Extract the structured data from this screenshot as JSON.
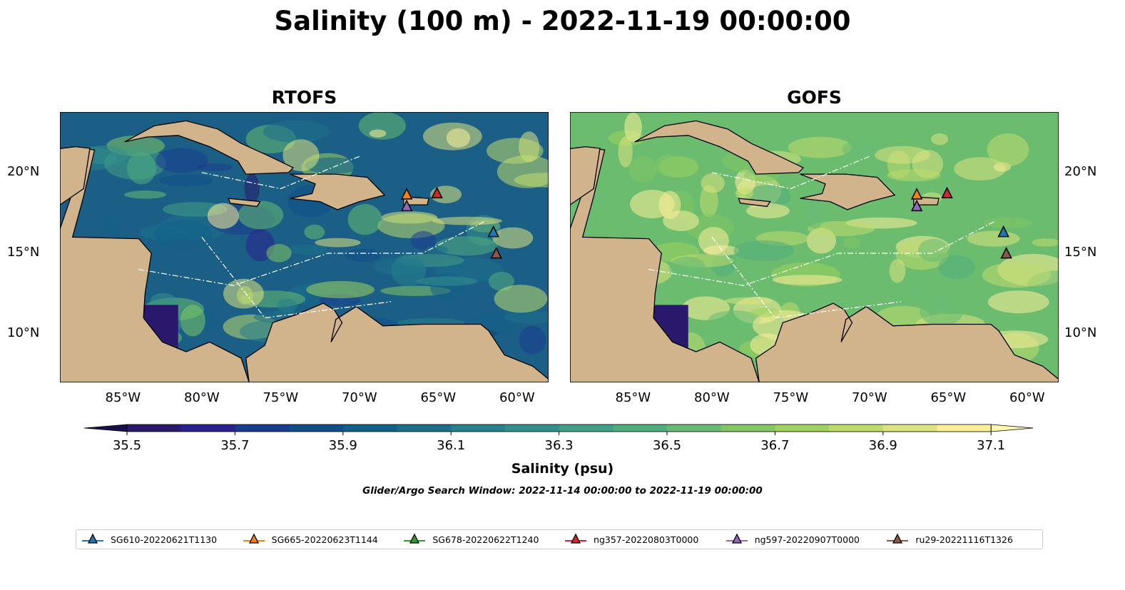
{
  "title": "Salinity (100 m) - 2022-11-19 00:00:00",
  "panels": [
    {
      "title": "RTOFS",
      "ocean": "#1c5f86"
    },
    {
      "title": "GOFS",
      "ocean": "#6cbc70"
    }
  ],
  "xticks": [
    "85°W",
    "80°W",
    "75°W",
    "70°W",
    "65°W",
    "60°W"
  ],
  "xtick_lons": [
    -85,
    -80,
    -75,
    -70,
    -65,
    -60
  ],
  "yticks": [
    "20°N",
    "15°N",
    "10°N"
  ],
  "ytick_lats": [
    20,
    15,
    10
  ],
  "extent": {
    "lon": [
      -89,
      -58
    ],
    "lat": [
      7,
      23.75
    ]
  },
  "colorbar": {
    "label": "Salinity (psu)",
    "ticks": [
      "35.5",
      "35.7",
      "35.9",
      "36.1",
      "36.3",
      "36.5",
      "36.7",
      "36.9",
      "37.1"
    ],
    "min": 35.5,
    "max": 37.1,
    "step": 0.1,
    "colors": [
      "#29186b",
      "#2a2190",
      "#1a3a8f",
      "#0f4e8a",
      "#12608a",
      "#1c6f8b",
      "#27808b",
      "#348f8a",
      "#419f85",
      "#52ad7e",
      "#67bb72",
      "#82c763",
      "#9fd25f",
      "#bfdb6d",
      "#dde37f",
      "#fdee99"
    ]
  },
  "search_window": "Glider/Argo Search Window: 2022-11-14 00:00:00 to 2022-11-19 00:00:00",
  "legend": [
    {
      "label": "SG610-20220621T1130",
      "color": "#1f77b4",
      "lon": -61.5,
      "lat": 16.3
    },
    {
      "label": "SG665-20220623T1144",
      "color": "#ff7f0e",
      "lon": -67.0,
      "lat": 18.63
    },
    {
      "label": "SG678-20220622T1240",
      "color": "#2ca02c",
      "lon": null,
      "lat": null
    },
    {
      "label": "ng357-20220803T0000",
      "color": "#d62728",
      "lon": -65.08,
      "lat": 18.7
    },
    {
      "label": "ng597-20220907T0000",
      "color": "#9467bd",
      "lon": -67.0,
      "lat": 17.9
    },
    {
      "label": "ru29-20221116T1326",
      "color": "#8c564b",
      "lon": -61.32,
      "lat": 14.97
    }
  ]
}
